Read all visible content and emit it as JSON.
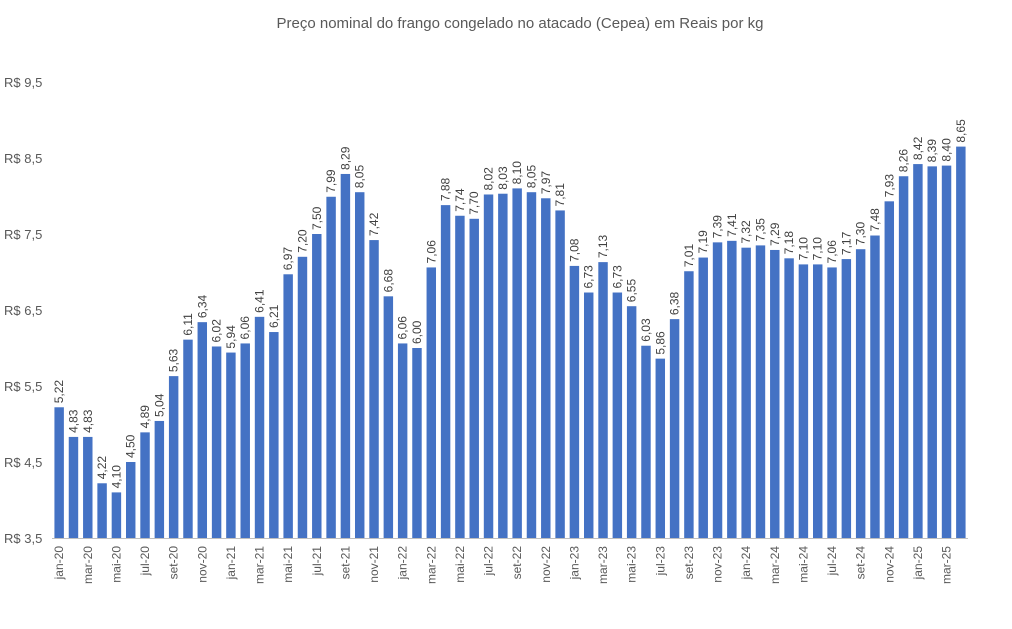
{
  "chart_data": {
    "type": "bar",
    "title": "Preço nominal do frango congelado no atacado (Cepea) em Reais por kg",
    "xlabel": "",
    "ylabel": "",
    "ylim": [
      3.5,
      9.5
    ],
    "y_ticks": [
      "R$ 3,5",
      "R$ 4,5",
      "R$ 5,5",
      "R$ 6,5",
      "R$ 7,5",
      "R$ 8,5",
      "R$ 9,5"
    ],
    "y_tick_values": [
      3.5,
      4.5,
      5.5,
      6.5,
      7.5,
      8.5,
      9.5
    ],
    "grid": false,
    "bar_color": "#4472C4",
    "x_tick_labels": [
      "jan-20",
      "mar-20",
      "mai-20",
      "jul-20",
      "set-20",
      "nov-20",
      "jan-21",
      "mar-21",
      "mai-21",
      "jul-21",
      "set-21",
      "nov-21",
      "jan-22",
      "mar-22",
      "mai-22",
      "jul-22",
      "set-22",
      "nov-22",
      "jan-23",
      "mar-23",
      "mai-23",
      "jul-23",
      "set-23",
      "nov-23",
      "jan-24",
      "mar-24",
      "mai-24",
      "jul-24",
      "set-24",
      "nov-24",
      "jan-25",
      "mar-25"
    ],
    "x_tick_step": 2,
    "values": [
      5.22,
      4.83,
      4.83,
      4.22,
      4.1,
      4.5,
      4.89,
      5.04,
      5.63,
      6.11,
      6.34,
      6.02,
      5.94,
      6.06,
      6.41,
      6.21,
      6.97,
      7.2,
      7.5,
      7.99,
      8.29,
      8.05,
      7.42,
      6.68,
      6.06,
      6.0,
      7.06,
      7.88,
      7.74,
      7.7,
      8.02,
      8.03,
      8.1,
      8.05,
      7.97,
      7.81,
      7.08,
      6.73,
      7.13,
      6.73,
      6.55,
      6.03,
      5.86,
      6.38,
      7.01,
      7.19,
      7.39,
      7.41,
      7.32,
      7.35,
      7.29,
      7.18,
      7.1,
      7.1,
      7.06,
      7.17,
      7.3,
      7.48,
      7.93,
      8.26,
      8.42,
      8.39,
      8.4,
      8.65
    ],
    "data_labels": [
      "5,22",
      "4,83",
      "4,83",
      "4,22",
      "4,10",
      "4,50",
      "4,89",
      "5,04",
      "5,63",
      "6,11",
      "6,34",
      "6,02",
      "5,94",
      "6,06",
      "6,41",
      "6,21",
      "6,97",
      "7,20",
      "7,50",
      "7,99",
      "8,29",
      "8,05",
      "7,42",
      "6,68",
      "6,06",
      "6,00",
      "7,06",
      "7,88",
      "7,74",
      "7,70",
      "8,02",
      "8,03",
      "8,10",
      "8,05",
      "7,97",
      "7,81",
      "7,08",
      "6,73",
      "7,13",
      "6,73",
      "6,55",
      "6,03",
      "5,86",
      "6,38",
      "7,01",
      "7,19",
      "7,39",
      "7,41",
      "7,32",
      "7,35",
      "7,29",
      "7,18",
      "7,10",
      "7,10",
      "7,06",
      "7,17",
      "7,30",
      "7,48",
      "7,93",
      "8,26",
      "8,42",
      "8,39",
      "8,40",
      "8,65"
    ]
  }
}
